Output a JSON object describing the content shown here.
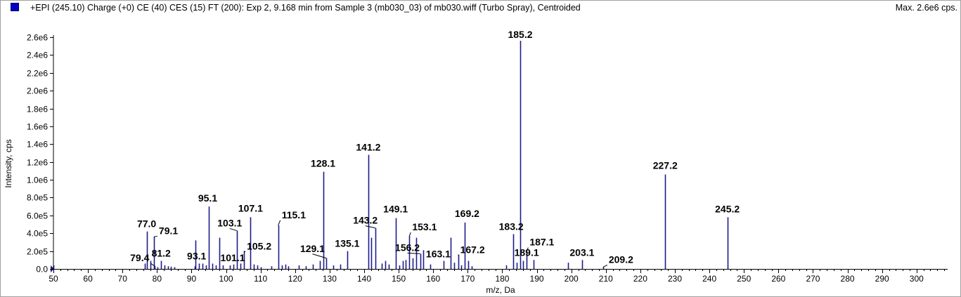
{
  "header": {
    "title": "+EPI (245.10) Charge (+0) CE (40) CES (15) FT (200): Exp 2, 9.168 min from Sample 3 (mb030_03) of mb030.wiff (Turbo Spray), Centroided",
    "max_label": "Max. 2.6e6 cps."
  },
  "colors": {
    "peak": "#1c1c8c",
    "axis": "#000000",
    "swatch": "#0000c8"
  },
  "chart_data": {
    "type": "bar",
    "title": "",
    "xlabel": "m/z, Da",
    "ylabel": "Intensity, cps",
    "xlim": [
      50,
      309
    ],
    "ylim": [
      0,
      2600000.0
    ],
    "grid": false,
    "x_ticks": [
      50,
      60,
      70,
      80,
      90,
      100,
      110,
      120,
      130,
      140,
      150,
      160,
      170,
      180,
      190,
      200,
      210,
      220,
      230,
      240,
      250,
      260,
      270,
      280,
      290,
      300
    ],
    "y_ticks": [
      {
        "value": 0,
        "label": "0.0"
      },
      {
        "value": 200000,
        "label": "2.0e5"
      },
      {
        "value": 400000,
        "label": "4.0e5"
      },
      {
        "value": 600000,
        "label": "6.0e5"
      },
      {
        "value": 800000,
        "label": "8.0e5"
      },
      {
        "value": 1000000,
        "label": "1.0e6"
      },
      {
        "value": 1200000,
        "label": "1.2e6"
      },
      {
        "value": 1400000,
        "label": "1.4e6"
      },
      {
        "value": 1600000,
        "label": "1.6e6"
      },
      {
        "value": 1800000,
        "label": "1.8e6"
      },
      {
        "value": 2000000,
        "label": "2.0e6"
      },
      {
        "value": 2200000,
        "label": "2.2e6"
      },
      {
        "value": 2400000,
        "label": "2.4e6"
      },
      {
        "value": 2600000,
        "label": "2.6e6"
      }
    ],
    "peaks": [
      {
        "mz": 50.0,
        "intensity": 40000
      },
      {
        "mz": 76.5,
        "intensity": 60000
      },
      {
        "mz": 77.0,
        "intensity": 420000
      },
      {
        "mz": 78.1,
        "intensity": 90000
      },
      {
        "mz": 79.1,
        "intensity": 360000
      },
      {
        "mz": 79.4,
        "intensity": 30000
      },
      {
        "mz": 80.1,
        "intensity": 20000
      },
      {
        "mz": 81.2,
        "intensity": 90000
      },
      {
        "mz": 82.1,
        "intensity": 40000
      },
      {
        "mz": 83.1,
        "intensity": 30000
      },
      {
        "mz": 84.1,
        "intensity": 25000
      },
      {
        "mz": 85.1,
        "intensity": 20000
      },
      {
        "mz": 90.9,
        "intensity": 30000
      },
      {
        "mz": 91.1,
        "intensity": 320000
      },
      {
        "mz": 92.1,
        "intensity": 60000
      },
      {
        "mz": 93.1,
        "intensity": 60000
      },
      {
        "mz": 94.1,
        "intensity": 40000
      },
      {
        "mz": 95.1,
        "intensity": 700000
      },
      {
        "mz": 96.1,
        "intensity": 60000
      },
      {
        "mz": 97.1,
        "intensity": 40000
      },
      {
        "mz": 98.1,
        "intensity": 350000
      },
      {
        "mz": 99.1,
        "intensity": 40000
      },
      {
        "mz": 101.1,
        "intensity": 40000
      },
      {
        "mz": 102.1,
        "intensity": 50000
      },
      {
        "mz": 103.1,
        "intensity": 430000
      },
      {
        "mz": 104.1,
        "intensity": 60000
      },
      {
        "mz": 105.2,
        "intensity": 200000
      },
      {
        "mz": 107.1,
        "intensity": 580000
      },
      {
        "mz": 108.1,
        "intensity": 50000
      },
      {
        "mz": 109.1,
        "intensity": 40000
      },
      {
        "mz": 110.1,
        "intensity": 20000
      },
      {
        "mz": 113.1,
        "intensity": 30000
      },
      {
        "mz": 115.1,
        "intensity": 490000
      },
      {
        "mz": 116.1,
        "intensity": 40000
      },
      {
        "mz": 117.1,
        "intensity": 50000
      },
      {
        "mz": 118.1,
        "intensity": 30000
      },
      {
        "mz": 121.1,
        "intensity": 40000
      },
      {
        "mz": 123.1,
        "intensity": 30000
      },
      {
        "mz": 125.1,
        "intensity": 50000
      },
      {
        "mz": 127.1,
        "intensity": 90000
      },
      {
        "mz": 128.1,
        "intensity": 1090000
      },
      {
        "mz": 129.1,
        "intensity": 120000
      },
      {
        "mz": 131.1,
        "intensity": 40000
      },
      {
        "mz": 133.1,
        "intensity": 50000
      },
      {
        "mz": 135.1,
        "intensity": 200000
      },
      {
        "mz": 141.2,
        "intensity": 1280000
      },
      {
        "mz": 142.1,
        "intensity": 350000
      },
      {
        "mz": 143.2,
        "intensity": 460000
      },
      {
        "mz": 145.1,
        "intensity": 60000
      },
      {
        "mz": 146.1,
        "intensity": 90000
      },
      {
        "mz": 147.1,
        "intensity": 50000
      },
      {
        "mz": 149.1,
        "intensity": 570000
      },
      {
        "mz": 150.1,
        "intensity": 40000
      },
      {
        "mz": 151.1,
        "intensity": 90000
      },
      {
        "mz": 152.1,
        "intensity": 100000
      },
      {
        "mz": 153.1,
        "intensity": 370000
      },
      {
        "mz": 154.1,
        "intensity": 120000
      },
      {
        "mz": 155.1,
        "intensity": 350000
      },
      {
        "mz": 156.2,
        "intensity": 170000
      },
      {
        "mz": 157.1,
        "intensity": 210000
      },
      {
        "mz": 159.1,
        "intensity": 50000
      },
      {
        "mz": 163.1,
        "intensity": 90000
      },
      {
        "mz": 165.1,
        "intensity": 350000
      },
      {
        "mz": 166.1,
        "intensity": 70000
      },
      {
        "mz": 167.2,
        "intensity": 160000
      },
      {
        "mz": 168.1,
        "intensity": 40000
      },
      {
        "mz": 169.2,
        "intensity": 520000
      },
      {
        "mz": 170.1,
        "intensity": 90000
      },
      {
        "mz": 171.1,
        "intensity": 30000
      },
      {
        "mz": 181.1,
        "intensity": 40000
      },
      {
        "mz": 183.2,
        "intensity": 390000
      },
      {
        "mz": 184.1,
        "intensity": 70000
      },
      {
        "mz": 185.2,
        "intensity": 2560000
      },
      {
        "mz": 186.1,
        "intensity": 90000
      },
      {
        "mz": 187.1,
        "intensity": 200000
      },
      {
        "mz": 189.1,
        "intensity": 100000
      },
      {
        "mz": 199.1,
        "intensity": 70000
      },
      {
        "mz": 203.1,
        "intensity": 100000
      },
      {
        "mz": 209.2,
        "intensity": 20000
      },
      {
        "mz": 227.2,
        "intensity": 1060000
      },
      {
        "mz": 245.2,
        "intensity": 580000
      }
    ],
    "annotations": [
      {
        "text": "77.0",
        "mz": 77.0
      },
      {
        "text": "79.1",
        "mz": 79.1
      },
      {
        "text": "79.4",
        "mz": 79.4
      },
      {
        "text": "81.2",
        "mz": 81.2
      },
      {
        "text": "93.1",
        "mz": 93.1
      },
      {
        "text": "95.1",
        "mz": 95.1
      },
      {
        "text": "101.1",
        "mz": 101.1
      },
      {
        "text": "103.1",
        "mz": 103.1
      },
      {
        "text": "105.2",
        "mz": 105.2
      },
      {
        "text": "107.1",
        "mz": 107.1
      },
      {
        "text": "115.1",
        "mz": 115.1
      },
      {
        "text": "128.1",
        "mz": 128.1
      },
      {
        "text": "129.1",
        "mz": 129.1
      },
      {
        "text": "135.1",
        "mz": 135.1
      },
      {
        "text": "141.2",
        "mz": 141.2
      },
      {
        "text": "143.2",
        "mz": 143.2
      },
      {
        "text": "149.1",
        "mz": 149.1
      },
      {
        "text": "153.1",
        "mz": 153.1
      },
      {
        "text": "156.2",
        "mz": 156.2
      },
      {
        "text": "163.1",
        "mz": 163.1
      },
      {
        "text": "167.2",
        "mz": 167.2
      },
      {
        "text": "169.2",
        "mz": 169.2
      },
      {
        "text": "183.2",
        "mz": 183.2
      },
      {
        "text": "185.2",
        "mz": 185.2
      },
      {
        "text": "187.1",
        "mz": 187.1
      },
      {
        "text": "189.1",
        "mz": 189.1
      },
      {
        "text": "203.1",
        "mz": 203.1
      },
      {
        "text": "209.2",
        "mz": 209.2
      },
      {
        "text": "227.2",
        "mz": 227.2
      },
      {
        "text": "245.2",
        "mz": 245.2
      }
    ]
  }
}
